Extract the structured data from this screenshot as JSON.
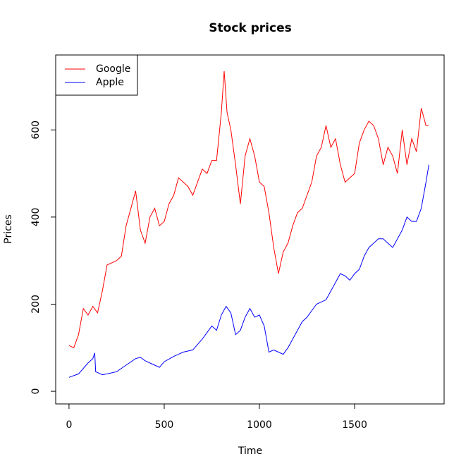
{
  "chart_data": {
    "type": "line",
    "title": "Stock prices",
    "x_label": "Time",
    "y_label": "Prices",
    "xlim": [
      -70,
      1970
    ],
    "ylim": [
      -29,
      772
    ],
    "xticks": [
      0,
      500,
      1000,
      1500
    ],
    "yticks": [
      0,
      200,
      400,
      600
    ],
    "legend": "top-left",
    "series": [
      {
        "name": "Google",
        "color": "#ff0000",
        "x": [
          0,
          25,
          50,
          75,
          100,
          125,
          150,
          175,
          200,
          225,
          250,
          275,
          300,
          325,
          350,
          375,
          400,
          425,
          450,
          475,
          500,
          525,
          550,
          575,
          600,
          625,
          650,
          675,
          700,
          725,
          750,
          775,
          800,
          815,
          830,
          850,
          875,
          900,
          925,
          950,
          975,
          1000,
          1025,
          1050,
          1075,
          1100,
          1125,
          1150,
          1175,
          1200,
          1225,
          1250,
          1275,
          1300,
          1325,
          1350,
          1375,
          1400,
          1425,
          1450,
          1475,
          1500,
          1525,
          1550,
          1575,
          1600,
          1625,
          1650,
          1675,
          1700,
          1725,
          1750,
          1775,
          1800,
          1825,
          1850,
          1875,
          1888
        ],
        "values": [
          105,
          100,
          130,
          190,
          175,
          195,
          180,
          230,
          290,
          295,
          300,
          310,
          380,
          420,
          460,
          370,
          340,
          400,
          420,
          380,
          390,
          430,
          450,
          490,
          480,
          470,
          450,
          480,
          510,
          500,
          530,
          530,
          640,
          735,
          640,
          600,
          520,
          430,
          540,
          580,
          540,
          480,
          470,
          410,
          330,
          270,
          320,
          340,
          380,
          410,
          420,
          450,
          480,
          540,
          560,
          610,
          560,
          580,
          520,
          480,
          490,
          500,
          570,
          600,
          620,
          610,
          580,
          520,
          560,
          540,
          500,
          600,
          520,
          580,
          550,
          650,
          610,
          610
        ]
      },
      {
        "name": "Apple",
        "color": "#0000ff",
        "x": [
          0,
          50,
          100,
          125,
          135,
          140,
          175,
          200,
          250,
          300,
          350,
          375,
          400,
          450,
          475,
          500,
          550,
          600,
          650,
          700,
          750,
          775,
          800,
          825,
          850,
          875,
          900,
          925,
          950,
          975,
          1000,
          1025,
          1050,
          1075,
          1100,
          1125,
          1150,
          1175,
          1200,
          1225,
          1250,
          1300,
          1350,
          1375,
          1400,
          1425,
          1450,
          1475,
          1500,
          1525,
          1550,
          1575,
          1600,
          1625,
          1650,
          1675,
          1700,
          1750,
          1775,
          1800,
          1825,
          1850,
          1875,
          1890
        ],
        "values": [
          32,
          40,
          65,
          75,
          88,
          45,
          38,
          40,
          45,
          60,
          75,
          78,
          70,
          60,
          55,
          68,
          80,
          90,
          95,
          120,
          150,
          140,
          175,
          195,
          180,
          130,
          140,
          170,
          190,
          170,
          175,
          150,
          90,
          95,
          90,
          85,
          100,
          120,
          140,
          160,
          170,
          200,
          210,
          230,
          250,
          270,
          265,
          255,
          270,
          280,
          310,
          330,
          340,
          350,
          350,
          340,
          330,
          370,
          400,
          390,
          390,
          420,
          480,
          520
        ]
      }
    ]
  }
}
